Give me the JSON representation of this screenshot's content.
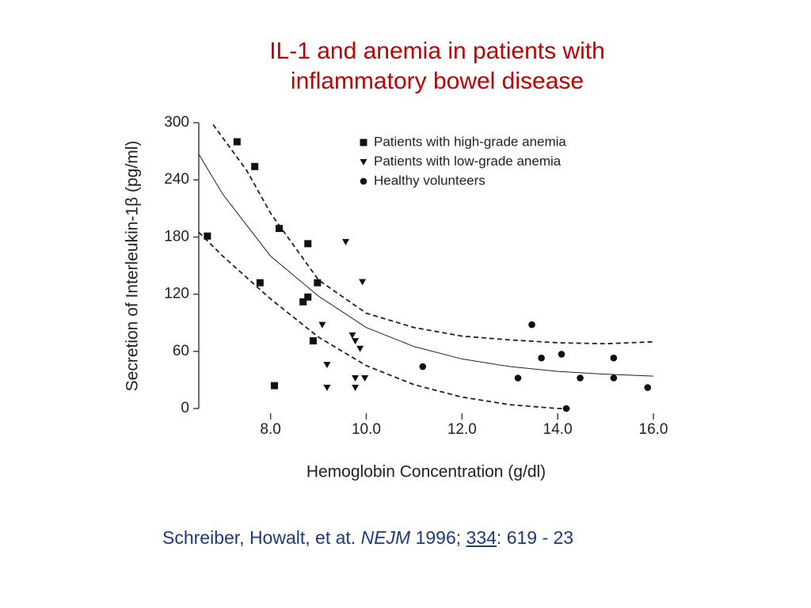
{
  "header": {
    "title": [
      "IL-1 and anemia in patients with",
      "inflammatory bowel disease"
    ]
  },
  "chart_data": {
    "type": "scatter",
    "ylabel": "Secretion of Interleukin-1β (pg/ml)",
    "xlabel": "Hemoglobin Concentration (g/dl)",
    "xlim": [
      6.5,
      16.0
    ],
    "ylim": [
      0,
      300
    ],
    "xticks": [
      {
        "value": 8,
        "label": "8.0"
      },
      {
        "value": 10,
        "label": "10.0"
      },
      {
        "value": 12,
        "label": "12.0"
      },
      {
        "value": 14,
        "label": "14.0"
      },
      {
        "value": 16,
        "label": "16.0"
      }
    ],
    "yticks": [
      0,
      60,
      120,
      180,
      240,
      300
    ],
    "legend": "upper right",
    "series": [
      {
        "name": "Patients with high-grade anemia",
        "color": "#111111",
        "marker": "square",
        "x": [
          7.3,
          7.67,
          6.68,
          8.18,
          8.78,
          7.78,
          8.98,
          8.78,
          8.68,
          8.89,
          8.08
        ],
        "values": [
          280,
          254,
          181,
          189,
          173,
          132,
          132,
          117,
          112,
          71,
          24
        ]
      },
      {
        "name": "Patients with low-grade anemia",
        "color": "#111111",
        "marker": "triangle",
        "x": [
          9.57,
          9.92,
          9.08,
          9.71,
          9.77,
          9.87,
          9.18,
          9.77,
          9.97,
          9.18,
          9.77
        ],
        "values": [
          175,
          133,
          88,
          77,
          71,
          63,
          46,
          32,
          32,
          22,
          22
        ]
      },
      {
        "name": "Healthy volunteers",
        "color": "#111111",
        "marker": "circle",
        "x": [
          13.46,
          13.66,
          14.08,
          11.18,
          13.17,
          14.47,
          15.17,
          15.17,
          15.88,
          14.18
        ],
        "values": [
          88,
          53,
          57,
          44,
          32,
          32,
          53,
          32,
          22,
          0
        ]
      }
    ],
    "curves": [
      {
        "style": "solid",
        "x": [
          6.5,
          7,
          8,
          9,
          10,
          11,
          12,
          13,
          14,
          15,
          16
        ],
        "values": [
          267,
          225,
          160,
          118,
          85,
          65,
          52,
          44,
          39,
          36,
          34
        ]
      },
      {
        "style": "dashed",
        "x": [
          6.8,
          7.5,
          8,
          9,
          10,
          11,
          12,
          13,
          14,
          15,
          16
        ],
        "values": [
          298,
          250,
          205,
          135,
          100,
          85,
          76,
          72,
          69,
          68,
          70
        ]
      },
      {
        "style": "dashed",
        "x": [
          6.5,
          7,
          8,
          9,
          10,
          11,
          12,
          13,
          14,
          14.3
        ],
        "values": [
          185,
          160,
          115,
          75,
          45,
          25,
          12,
          4,
          0,
          0
        ]
      }
    ]
  },
  "source": {
    "authors": "Schreiber, Howalt, et at.",
    "journal": "NEJM",
    "year": "1996;",
    "volume": "334",
    "pages": ": 619 - 23"
  }
}
